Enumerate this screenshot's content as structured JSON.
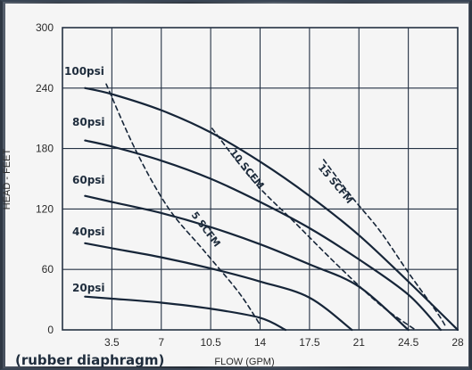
{
  "chart_data": {
    "type": "line",
    "xlabel": "FLOW (GPM)",
    "ylabel": "HEAD - FEET",
    "footer": "(rubber diaphragm)",
    "xlim": [
      0,
      28
    ],
    "ylim": [
      0,
      300
    ],
    "x_ticks": [
      3.5,
      7,
      10.5,
      14,
      17.5,
      21,
      24.5,
      28
    ],
    "x_tick_labels": [
      "3.5",
      "7",
      "10.5",
      "14",
      "17.5",
      "21",
      "24.5",
      "28"
    ],
    "y_ticks": [
      0,
      60,
      120,
      180,
      240,
      300
    ],
    "y_tick_labels": [
      "0",
      "60",
      "120",
      "180",
      "240",
      "300"
    ],
    "grid": true,
    "series": [
      {
        "name": "100psi",
        "style": "solid",
        "points": [
          [
            1.6,
            240
          ],
          [
            3.5,
            234
          ],
          [
            7,
            218
          ],
          [
            10.5,
            196
          ],
          [
            14,
            167
          ],
          [
            17.5,
            133
          ],
          [
            21,
            94
          ],
          [
            24.5,
            48
          ],
          [
            28,
            0
          ]
        ]
      },
      {
        "name": "80psi",
        "style": "solid",
        "points": [
          [
            1.6,
            188
          ],
          [
            3.5,
            182
          ],
          [
            7,
            168
          ],
          [
            10.5,
            150
          ],
          [
            14,
            127
          ],
          [
            17.5,
            101
          ],
          [
            21,
            70
          ],
          [
            24.5,
            35
          ],
          [
            26.8,
            0
          ]
        ]
      },
      {
        "name": "60psi",
        "style": "solid",
        "points": [
          [
            1.6,
            133
          ],
          [
            3.5,
            127
          ],
          [
            7,
            116
          ],
          [
            10.5,
            102
          ],
          [
            14,
            85
          ],
          [
            17.5,
            65
          ],
          [
            21,
            43
          ],
          [
            24.5,
            0
          ]
        ]
      },
      {
        "name": "40psi",
        "style": "solid",
        "points": [
          [
            1.6,
            86
          ],
          [
            3.5,
            81
          ],
          [
            7,
            72
          ],
          [
            10.5,
            61
          ],
          [
            14,
            48
          ],
          [
            17.5,
            32
          ],
          [
            20.5,
            0
          ]
        ]
      },
      {
        "name": "20psi",
        "style": "solid",
        "points": [
          [
            1.6,
            33
          ],
          [
            3.5,
            31
          ],
          [
            7,
            27
          ],
          [
            10.5,
            21
          ],
          [
            14,
            12
          ],
          [
            15.8,
            0
          ]
        ]
      },
      {
        "name": "5 SCFM",
        "style": "dashed",
        "points": [
          [
            3.1,
            244
          ],
          [
            5.2,
            178
          ],
          [
            7.5,
            121
          ],
          [
            10,
            79
          ],
          [
            12.5,
            37
          ],
          [
            14,
            5
          ]
        ]
      },
      {
        "name": "10 SCFM",
        "style": "dashed",
        "points": [
          [
            10.6,
            200
          ],
          [
            13.5,
            148
          ],
          [
            16.5,
            106
          ],
          [
            19.5,
            64
          ],
          [
            22.5,
            25
          ],
          [
            25,
            0
          ]
        ]
      },
      {
        "name": "15 SCFM",
        "style": "dashed",
        "points": [
          [
            18.5,
            169
          ],
          [
            20.5,
            132
          ],
          [
            22.5,
            98
          ],
          [
            24.5,
            57
          ],
          [
            26.5,
            18
          ],
          [
            27.2,
            2
          ]
        ]
      }
    ],
    "labels": {
      "psi": [
        "100psi",
        "80psi",
        "60psi",
        "40psi",
        "20psi"
      ],
      "scfm": [
        "5 SCFM",
        "10 SCFM",
        "15 SCFM"
      ]
    }
  }
}
